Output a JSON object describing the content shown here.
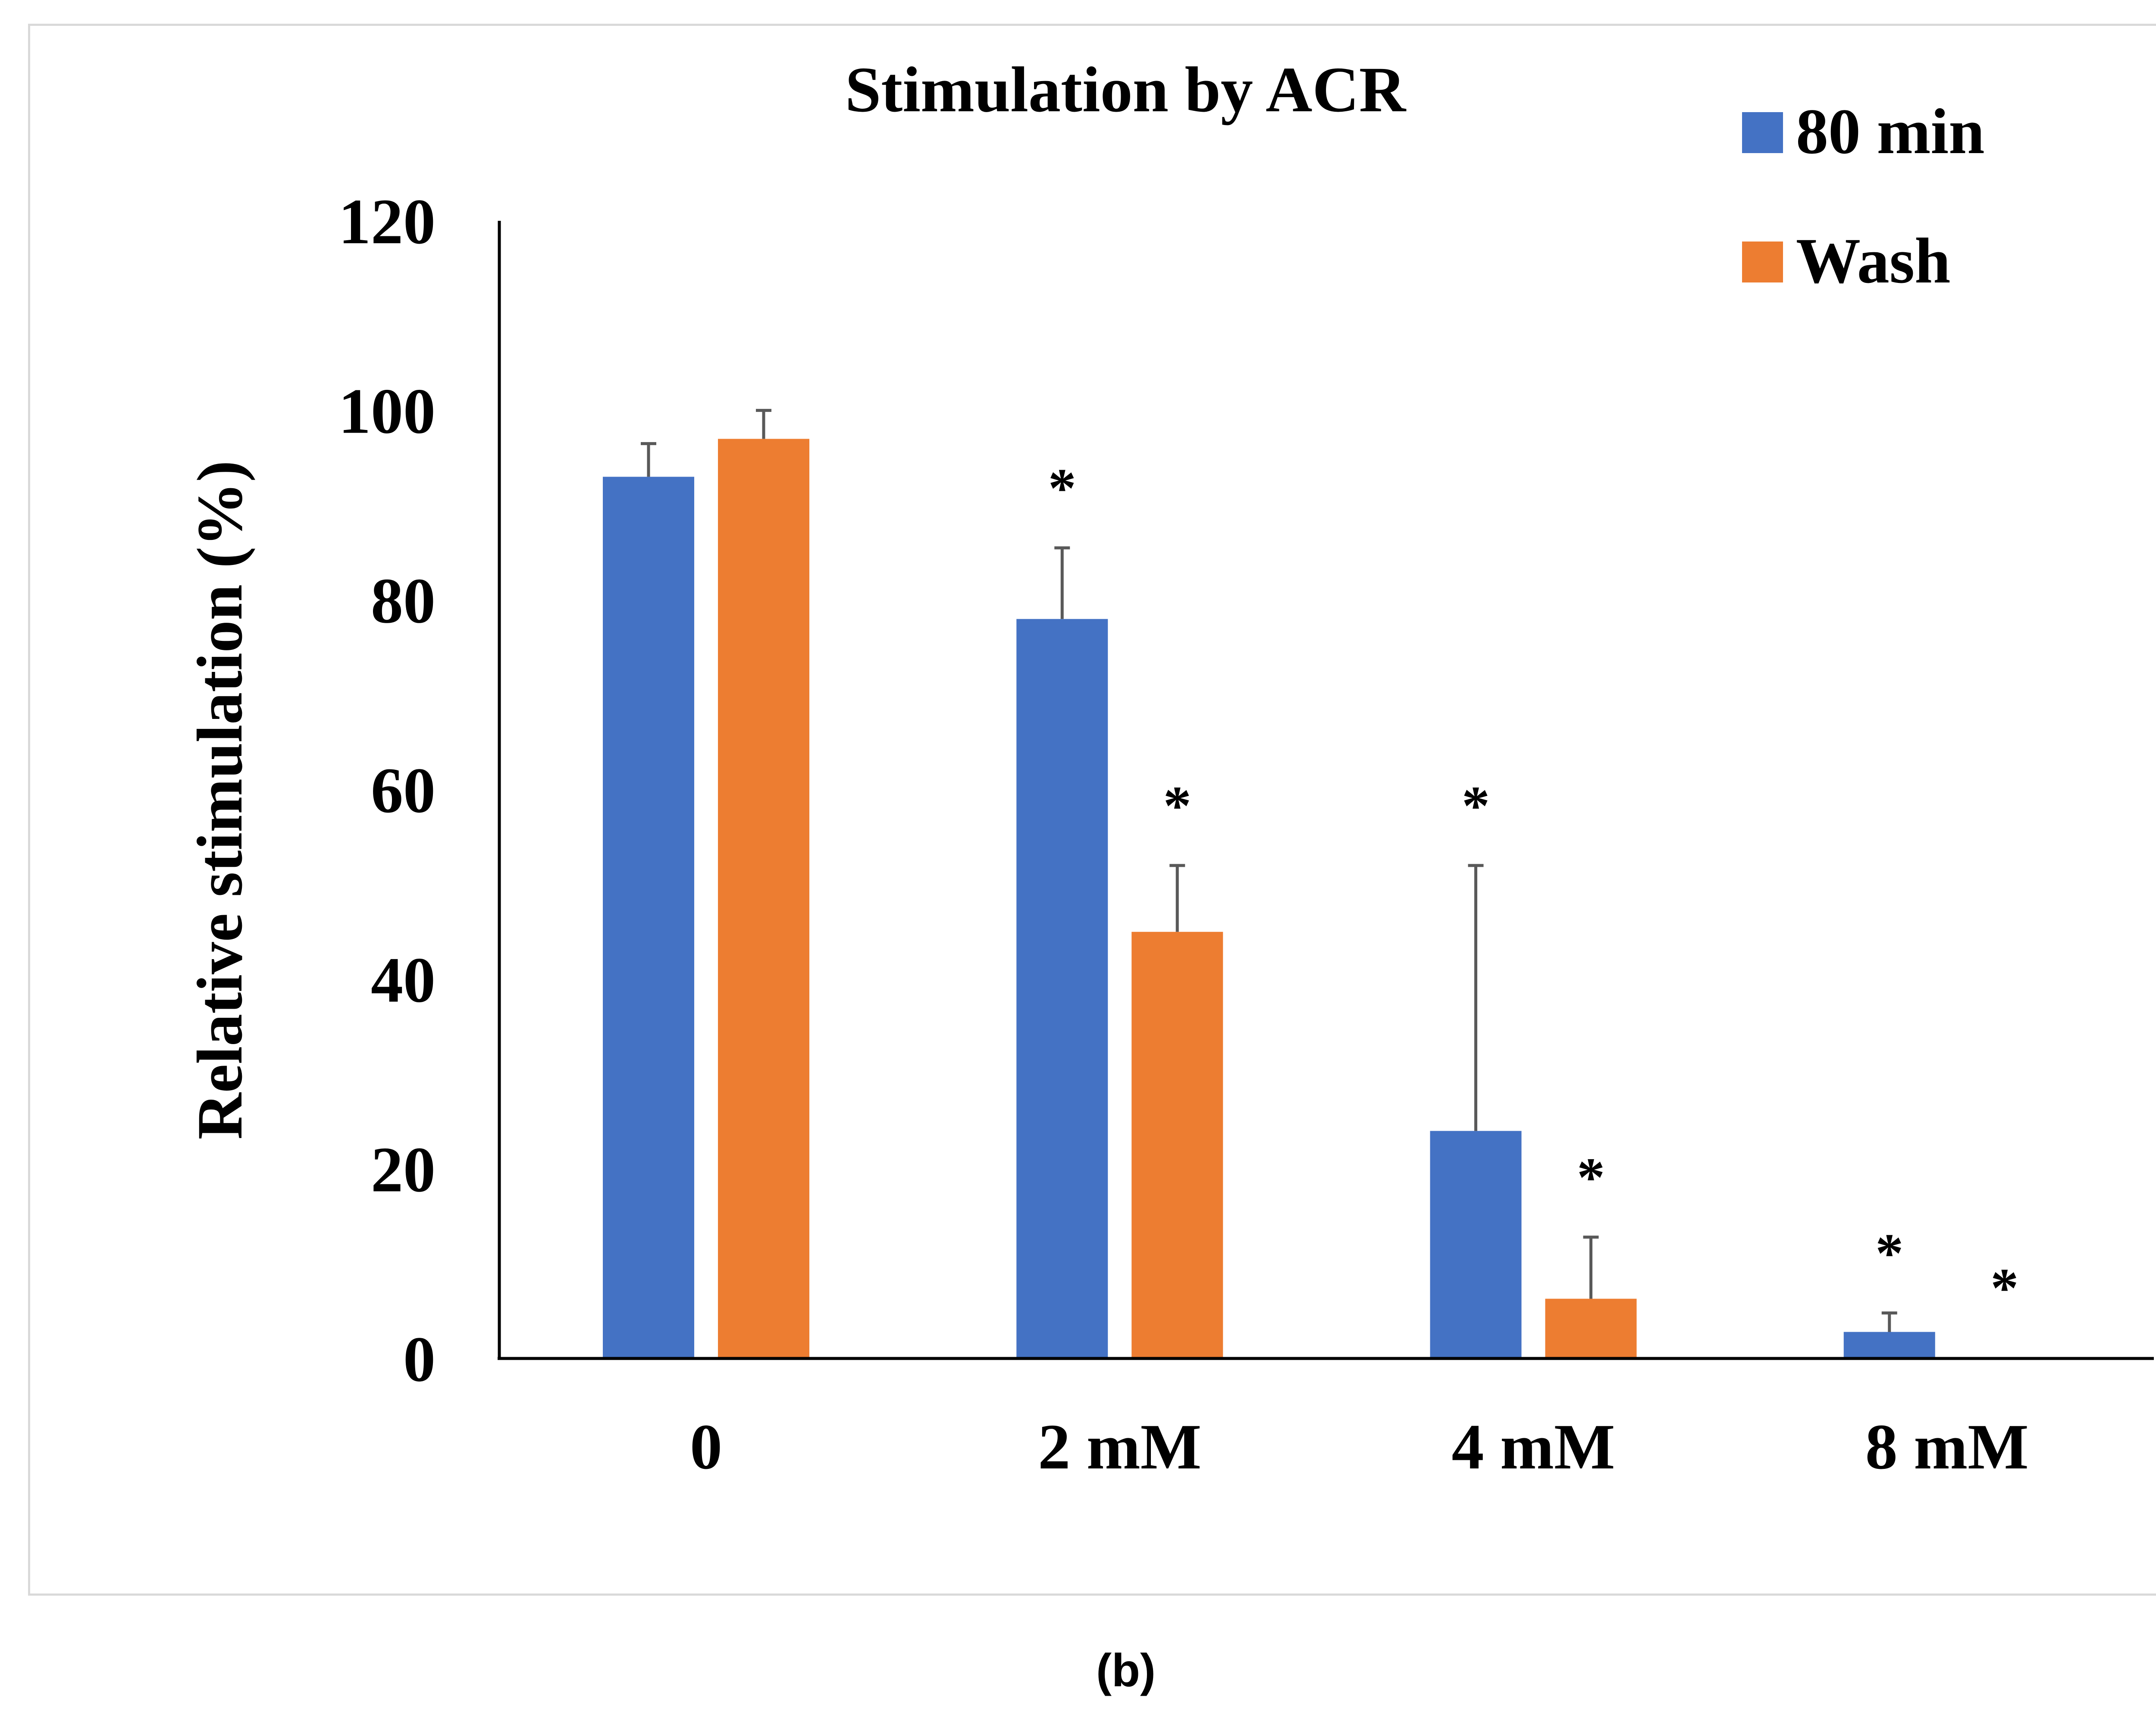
{
  "caption": "(b)",
  "colors": {
    "series_80min": "#4472C4",
    "series_wash": "#ED7D31",
    "error_bar": "#595959",
    "axis": "#000000",
    "frame": "#d9d9d9"
  },
  "chart_data": {
    "type": "bar",
    "title": "Stimulation by ACR",
    "xlabel": "",
    "ylabel": "Relative stimulation (%)",
    "categories": [
      "0",
      "2 mM",
      "4 mM",
      "8 mM"
    ],
    "ylim": [
      0,
      120
    ],
    "yticks": [
      0,
      20,
      40,
      60,
      80,
      100,
      120
    ],
    "grid": false,
    "legend_position": "top-right",
    "series": [
      {
        "name": "80 min",
        "values": [
          93,
          78,
          24,
          2.8
        ],
        "errors": [
          3.5,
          7.5,
          28,
          2
        ],
        "significant": [
          false,
          true,
          true,
          true
        ]
      },
      {
        "name": "Wash",
        "values": [
          97,
          45,
          6.3,
          0
        ],
        "errors": [
          3,
          7,
          6.5,
          0
        ],
        "significant": [
          false,
          true,
          true,
          true
        ]
      }
    ],
    "significance_marker": "*"
  }
}
